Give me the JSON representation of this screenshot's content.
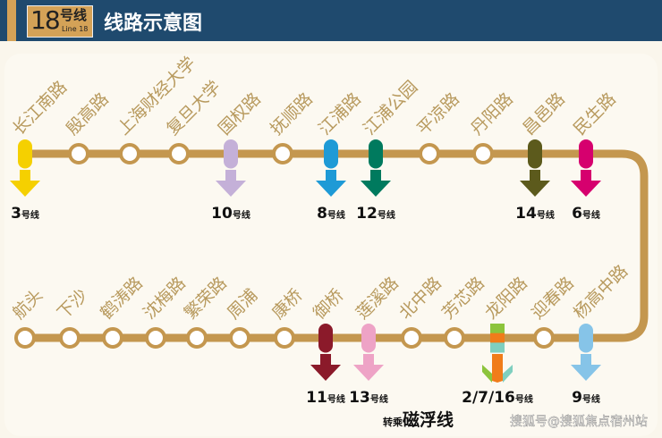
{
  "header": {
    "line_number": "18",
    "line_zh": "号线",
    "line_en": "Line 18",
    "title": "线路示意图"
  },
  "colors": {
    "track": "#c4974f",
    "station_text": "#b89a5e",
    "header_bg": "#1f4a6e",
    "badge": "#d4a257"
  },
  "top_row": [
    {
      "name": "长江南路",
      "transfer": {
        "label": "3",
        "colors": [
          "#f5d000"
        ]
      }
    },
    {
      "name": "殷高路"
    },
    {
      "name": "上海财经大学"
    },
    {
      "name": "复旦大学"
    },
    {
      "name": "国权路",
      "transfer": {
        "label": "10",
        "colors": [
          "#c4b0d8"
        ]
      }
    },
    {
      "name": "抚顺路"
    },
    {
      "name": "江浦路",
      "transfer": {
        "label": "8",
        "colors": [
          "#1e9ad6"
        ]
      }
    },
    {
      "name": "江浦公园",
      "transfer": {
        "label": "12",
        "colors": [
          "#007a5e"
        ]
      }
    },
    {
      "name": "平凉路"
    },
    {
      "name": "丹阳路"
    },
    {
      "name": "昌邑路",
      "transfer": {
        "label": "14",
        "colors": [
          "#5c5a1c"
        ]
      }
    },
    {
      "name": "民生路",
      "transfer": {
        "label": "6",
        "colors": [
          "#d6006e"
        ]
      }
    }
  ],
  "bottom_row": [
    {
      "name": "航头"
    },
    {
      "name": "下沙"
    },
    {
      "name": "鹤涛路"
    },
    {
      "name": "沈梅路"
    },
    {
      "name": "繁荣路"
    },
    {
      "name": "周浦"
    },
    {
      "name": "康桥"
    },
    {
      "name": "御桥",
      "transfer": {
        "label": "11",
        "colors": [
          "#8b1a2a"
        ]
      }
    },
    {
      "name": "莲溪路",
      "transfer": {
        "label": "13",
        "colors": [
          "#eea3c6"
        ]
      }
    },
    {
      "name": "北中路"
    },
    {
      "name": "芳芯路"
    },
    {
      "name": "龙阳路",
      "transfer": {
        "label": "2/7/16",
        "colors": [
          "#8cc43c",
          "#f07c1a",
          "#7fcfbf"
        ]
      }
    },
    {
      "name": "迎春路"
    },
    {
      "name": "杨高中路",
      "transfer": {
        "label": "9",
        "colors": [
          "#86c4e8"
        ]
      }
    }
  ],
  "line_suffix": "号线",
  "transfer_note": {
    "prefix": "转乘",
    "name": "磁浮线"
  },
  "watermark": "搜狐号@搜狐焦点宿州站"
}
